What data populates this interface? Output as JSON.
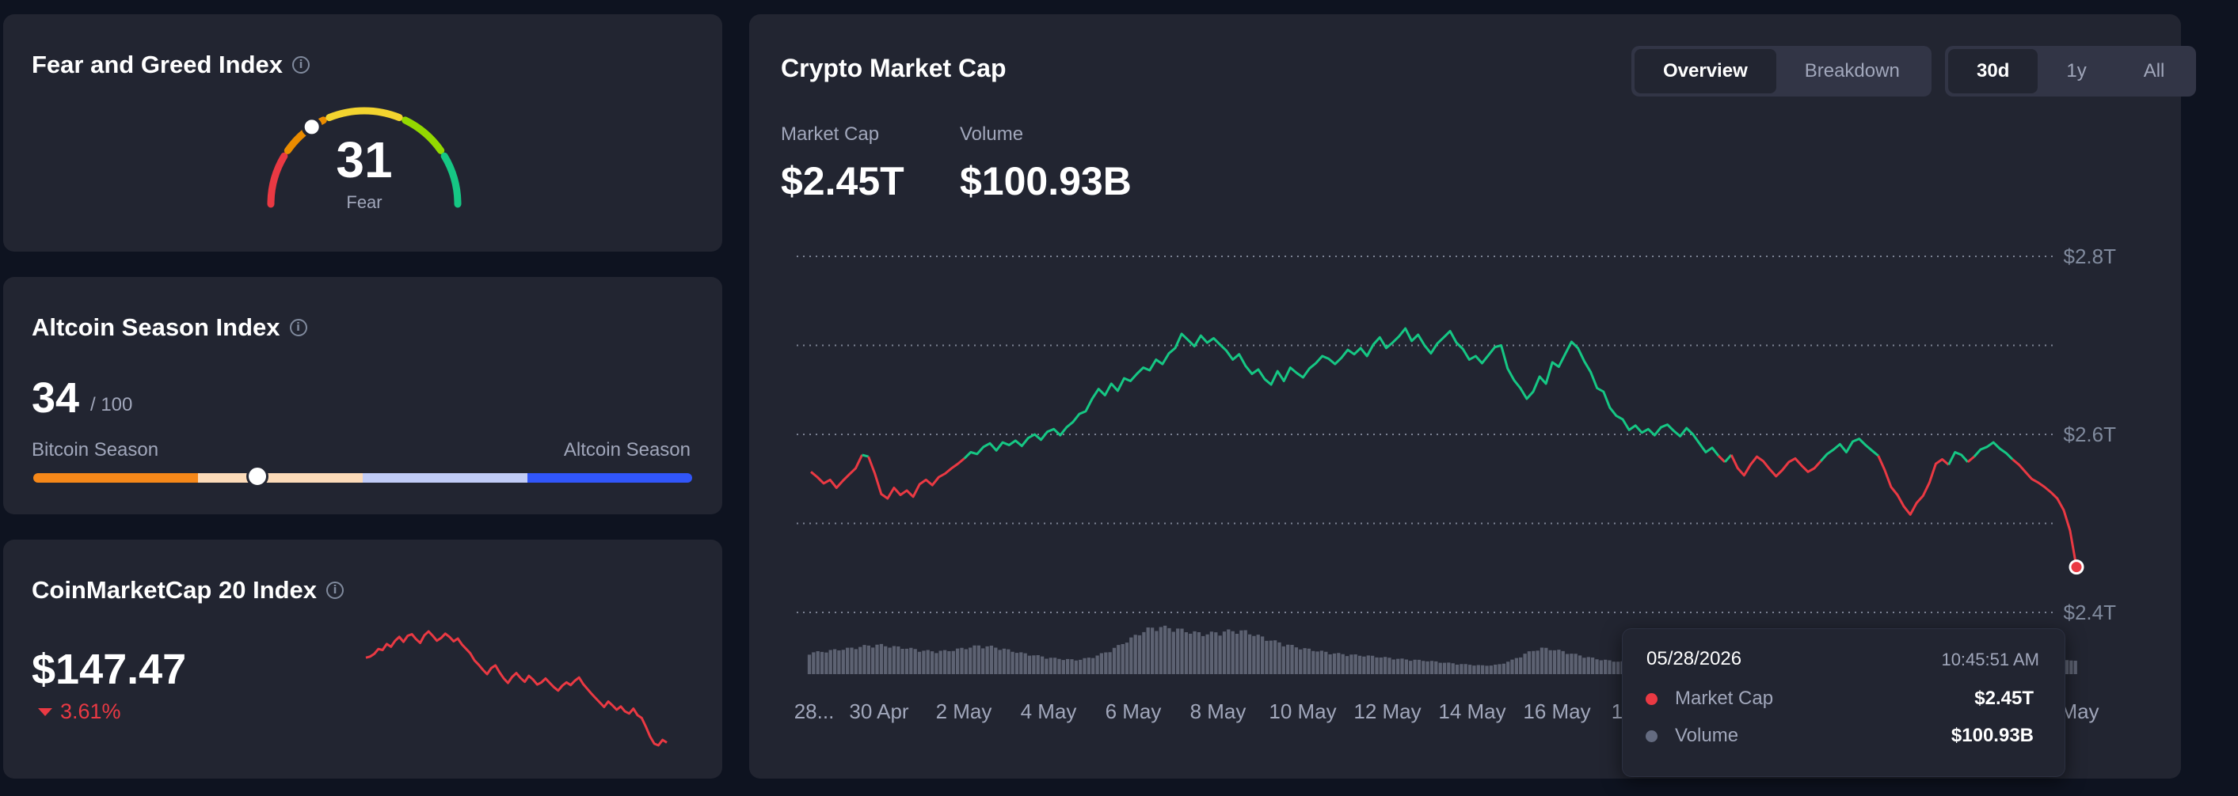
{
  "fear_greed": {
    "title": "Fear and Greed Index",
    "value": "31",
    "label": "Fear",
    "value_numeric": 31,
    "max": 100,
    "colors": [
      "#ea3943",
      "#ea8c00",
      "#f3d42f",
      "#93d900",
      "#16c784"
    ]
  },
  "altcoin": {
    "title": "Altcoin Season Index",
    "value": "34",
    "max_label": "/ 100",
    "value_numeric": 34,
    "left_label": "Bitcoin Season",
    "right_label": "Altcoin Season",
    "bar_colors": [
      "#f68819",
      "#fcdbb9",
      "#c1ccf7",
      "#3156fa"
    ]
  },
  "cmc20": {
    "title": "CoinMarketCap 20 Index",
    "value": "$147.47",
    "change": "3.61%",
    "change_direction": "down",
    "color": "#ea3943",
    "sparkline": [
      160.8,
      161.0,
      161.5,
      162.4,
      162.2,
      163.3,
      162.8,
      163.9,
      164.6,
      163.7,
      164.8,
      165.1,
      164.2,
      163.5,
      164.9,
      165.6,
      164.8,
      163.9,
      164.4,
      165.2,
      164.6,
      163.8,
      164.3,
      163.2,
      162.4,
      161.6,
      160.3,
      159.5,
      158.6,
      157.8,
      158.9,
      159.4,
      158.1,
      157.0,
      156.2,
      157.3,
      158.0,
      157.1,
      156.4,
      157.5,
      156.8,
      155.9,
      156.3,
      157.0,
      156.2,
      155.4,
      154.8,
      155.7,
      156.3,
      155.8,
      156.6,
      157.2,
      156.0,
      155.1,
      154.2,
      153.4,
      152.6,
      151.8,
      152.8,
      152.1,
      151.3,
      151.9,
      151.0,
      150.6,
      151.5,
      150.3,
      149.8,
      148.2,
      146.4,
      145.1,
      144.8,
      145.8,
      145.3
    ]
  },
  "main": {
    "title": "Crypto Market Cap",
    "view_tabs": [
      {
        "label": "Overview",
        "active": true
      },
      {
        "label": "Breakdown",
        "active": false
      }
    ],
    "range_tabs": [
      {
        "label": "30d",
        "active": true
      },
      {
        "label": "1y",
        "active": false
      },
      {
        "label": "All",
        "active": false
      }
    ],
    "market_cap_label": "Market Cap",
    "market_cap_value": "$2.45T",
    "volume_label": "Volume",
    "volume_value": "$100.93B",
    "tooltip": {
      "date": "05/28/2026",
      "time": "10:45:51 AM",
      "market_cap_label": "Market Cap",
      "market_cap_value": "$2.45T",
      "volume_label": "Volume",
      "volume_value": "$100.93B",
      "market_cap_color": "#ea3943",
      "volume_color": "#646b80"
    }
  },
  "chart_data": {
    "type": "line",
    "x_labels": [
      "28...",
      "30 Apr",
      "2 May",
      "4 May",
      "6 May",
      "8 May",
      "10 May",
      "12 May",
      "14 May",
      "16 May",
      "1",
      "May"
    ],
    "y_tick_labels": [
      "$2.8T",
      "$2.6T",
      "$2.4T"
    ],
    "y_ticks": [
      2.8,
      2.7,
      2.6,
      2.5,
      2.4
    ],
    "ylim": [
      2.4,
      2.8
    ],
    "baseline": 2.573,
    "up_color": "#16c784",
    "down_color": "#ea3943",
    "market_cap_T": [
      2.558,
      2.552,
      2.545,
      2.549,
      2.54,
      2.548,
      2.555,
      2.562,
      2.577,
      2.575,
      2.556,
      2.533,
      2.528,
      2.54,
      2.532,
      2.537,
      2.53,
      2.544,
      2.549,
      2.543,
      2.552,
      2.556,
      2.562,
      2.567,
      2.573,
      2.58,
      2.578,
      2.586,
      2.59,
      2.582,
      2.591,
      2.588,
      2.593,
      2.587,
      2.596,
      2.6,
      2.594,
      2.603,
      2.606,
      2.599,
      2.608,
      2.614,
      2.623,
      2.626,
      2.64,
      2.651,
      2.644,
      2.657,
      2.649,
      2.663,
      2.66,
      2.668,
      2.675,
      2.672,
      2.684,
      2.679,
      2.691,
      2.697,
      2.713,
      2.706,
      2.699,
      2.711,
      2.703,
      2.708,
      2.701,
      2.694,
      2.684,
      2.69,
      2.677,
      2.668,
      2.673,
      2.662,
      2.656,
      2.671,
      2.66,
      2.675,
      2.669,
      2.664,
      2.674,
      2.68,
      2.688,
      2.685,
      2.679,
      2.686,
      2.695,
      2.69,
      2.697,
      2.688,
      2.701,
      2.709,
      2.697,
      2.703,
      2.71,
      2.719,
      2.705,
      2.712,
      2.7,
      2.691,
      2.702,
      2.709,
      2.716,
      2.703,
      2.696,
      2.684,
      2.688,
      2.68,
      2.689,
      2.698,
      2.7,
      2.674,
      2.661,
      2.652,
      2.64,
      2.648,
      2.665,
      2.657,
      2.681,
      2.676,
      2.69,
      2.704,
      2.697,
      2.682,
      2.67,
      2.652,
      2.648,
      2.63,
      2.621,
      2.617,
      2.605,
      2.61,
      2.602,
      2.606,
      2.599,
      2.608,
      2.611,
      2.604,
      2.598,
      2.607,
      2.6,
      2.59,
      2.58,
      2.585,
      2.576,
      2.569,
      2.577,
      2.562,
      2.554,
      2.566,
      2.575,
      2.57,
      2.561,
      2.553,
      2.56,
      2.569,
      2.573,
      2.565,
      2.558,
      2.562,
      2.57,
      2.578,
      2.583,
      2.589,
      2.58,
      2.592,
      2.595,
      2.588,
      2.582,
      2.576,
      2.56,
      2.541,
      2.532,
      2.519,
      2.51,
      2.523,
      2.531,
      2.546,
      2.567,
      2.572,
      2.566,
      2.58,
      2.577,
      2.569,
      2.575,
      2.583,
      2.586,
      2.591,
      2.584,
      2.579,
      2.572,
      2.566,
      2.558,
      2.55,
      2.546,
      2.541,
      2.535,
      2.528,
      2.515,
      2.492,
      2.451
    ]
  }
}
